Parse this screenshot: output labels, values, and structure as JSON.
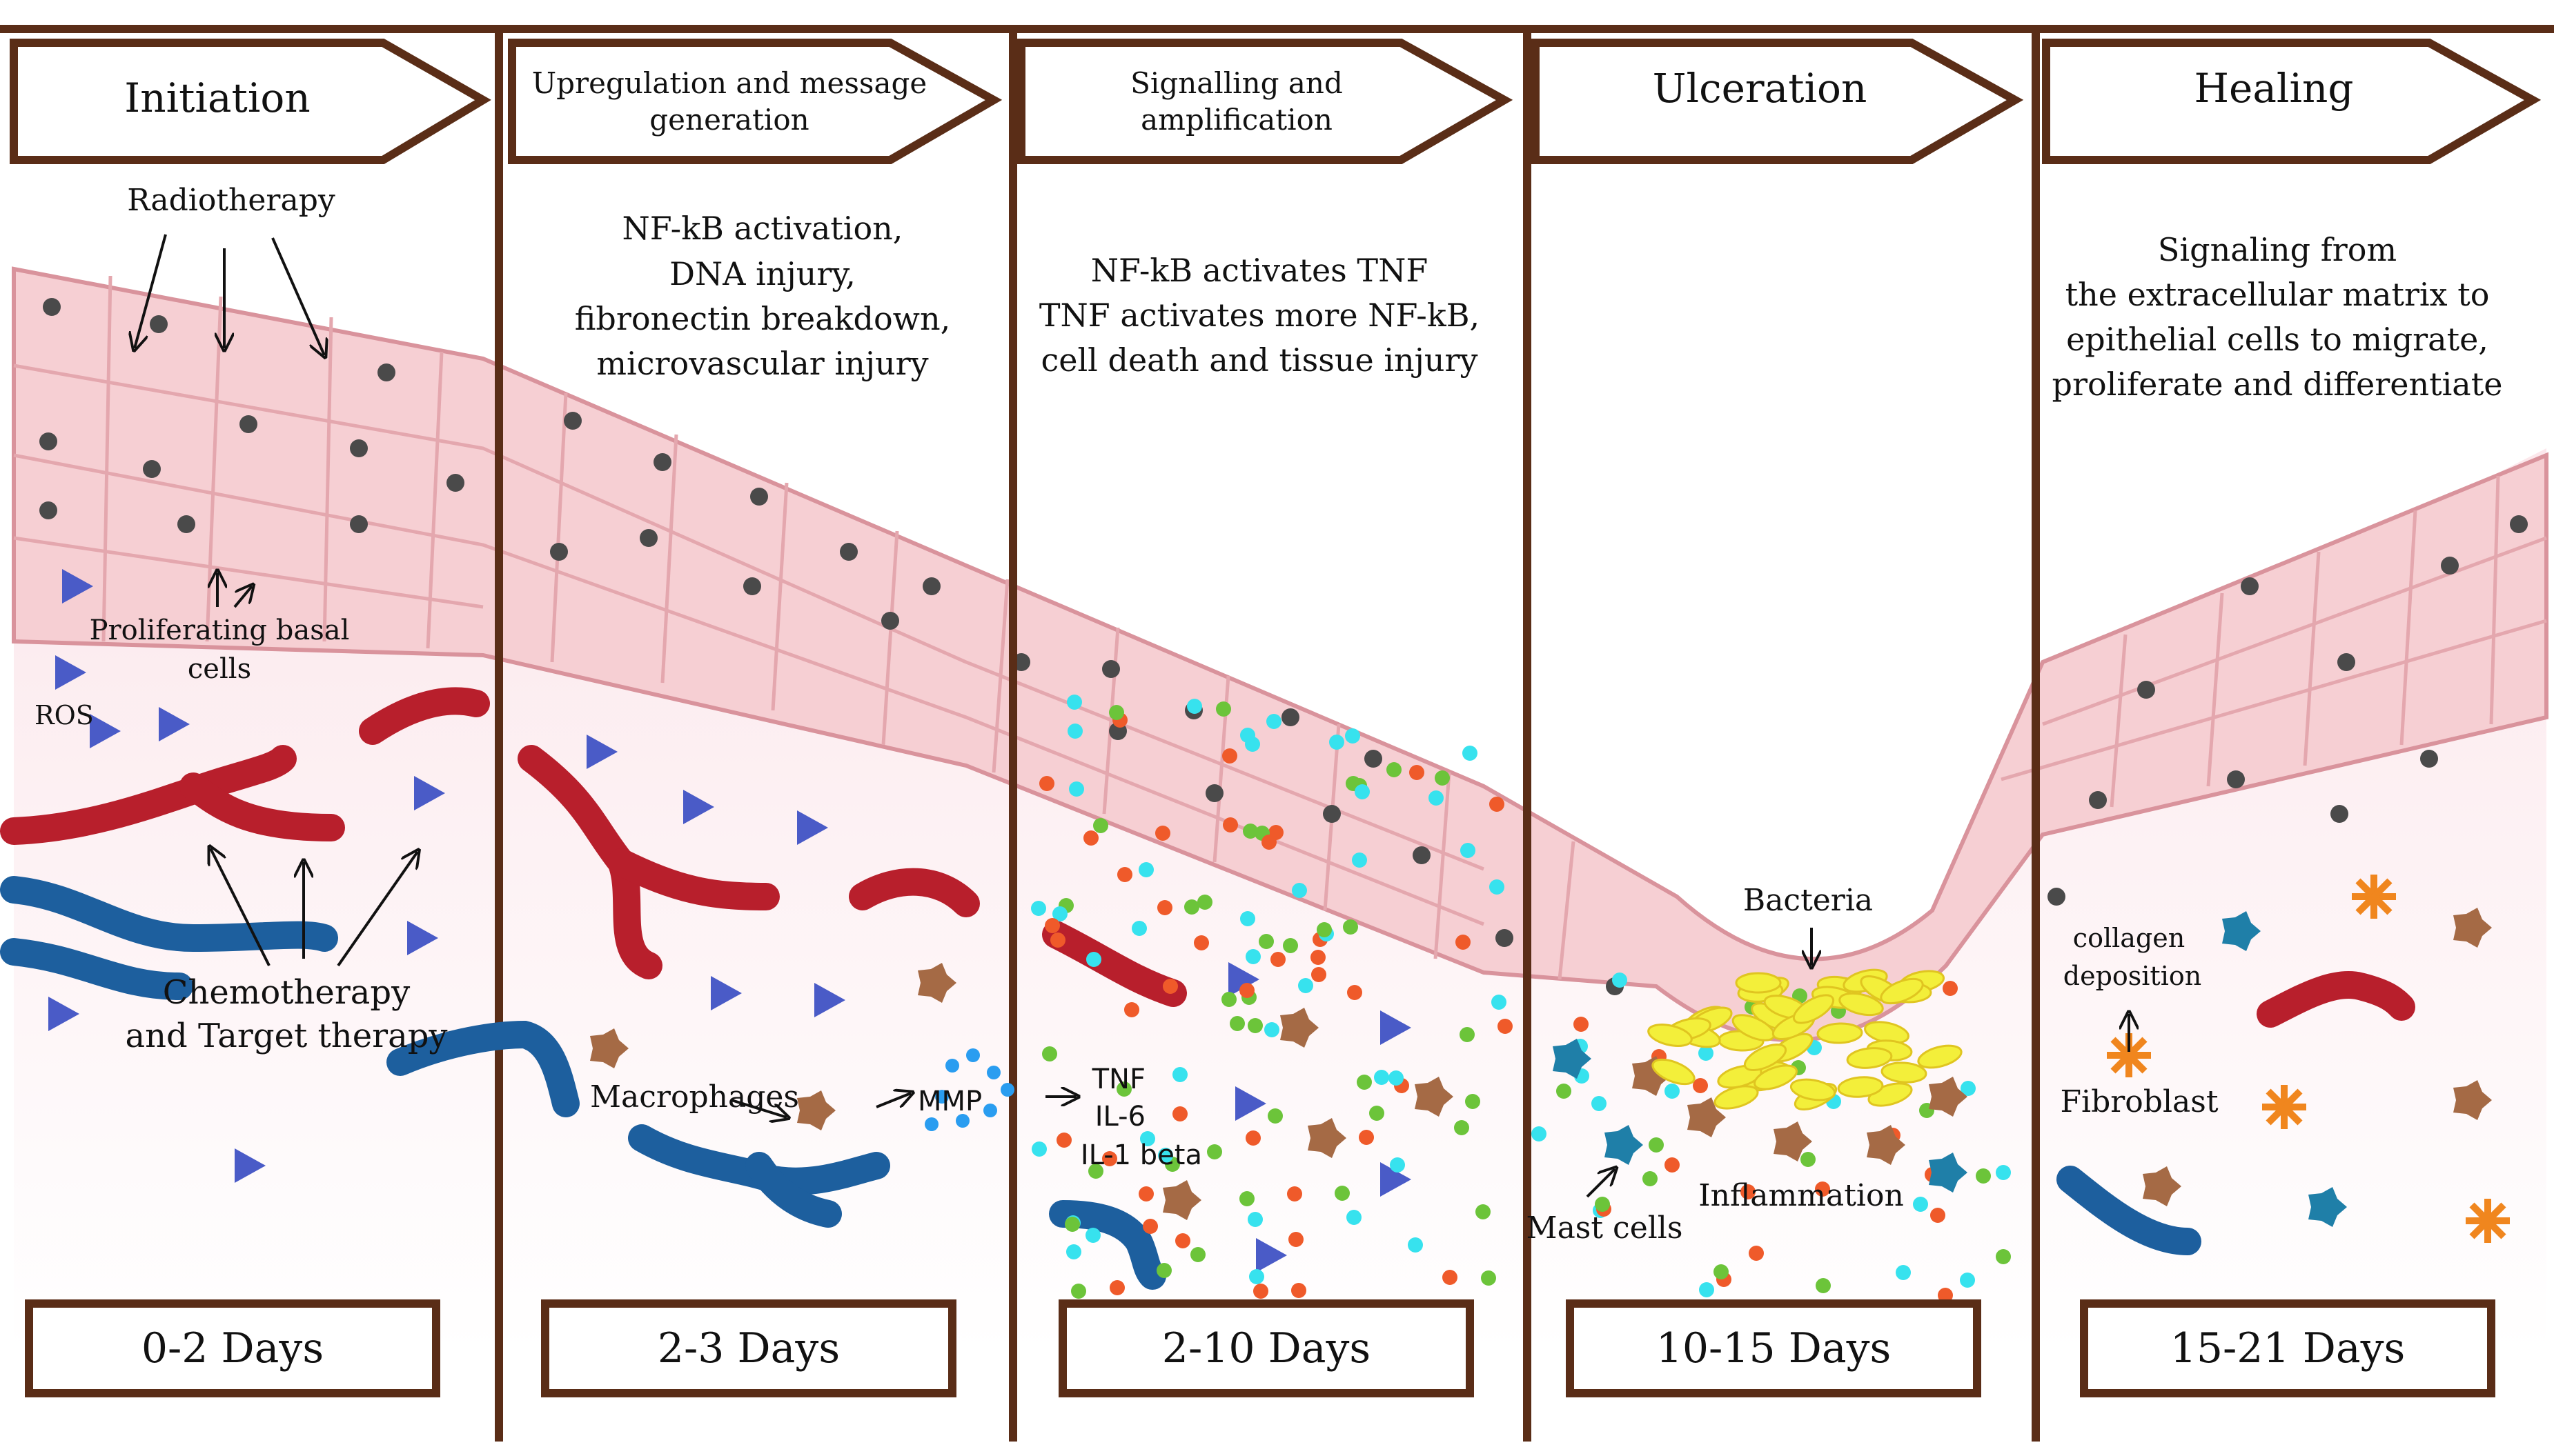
{
  "colors": {
    "divider": "#5a2d17",
    "cell_fill": "#f6cfd3",
    "cell_stroke": "#d9939c",
    "nucleus": "#4a4a4a",
    "tissue_bg": "#f9e6ea",
    "vessel_red": "#b81f2c",
    "vessel_blue": "#1d5f9e",
    "ros": "#4a5bc7",
    "macrophage": "#a56a45",
    "mast_cell": "#1f7fa8",
    "fibroblast": "#f0861e",
    "bacteria": "#f3ef3a",
    "tnf_dot": "#37e2ee",
    "il6_dot": "#ef5a2a",
    "il1_dot": "#6cc43a",
    "mmp_dot": "#2a9df0"
  },
  "stages": [
    {
      "header": [
        "Initiation"
      ],
      "description": [],
      "days": "0-2 Days"
    },
    {
      "header": [
        "Upregulation  and message",
        "generation"
      ],
      "description": [
        "NF-kB activation,",
        "DNA injury,",
        "fibronectin breakdown,",
        "microvascular injury"
      ],
      "days": "2-3 Days"
    },
    {
      "header": [
        "Signalling and",
        "amplification"
      ],
      "description": [
        "NF-kB activates TNF",
        "TNF activates more NF-kB,",
        "cell death and tissue injury"
      ],
      "days": "2-10 Days"
    },
    {
      "header": [
        "Ulceration"
      ],
      "description": [],
      "days": "10-15 Days"
    },
    {
      "header": [
        "Healing"
      ],
      "description": [
        "Signaling from",
        "the extracellular matrix to",
        "epithelial cells to migrate,",
        "proliferate and differentiate"
      ],
      "days": "15-21 Days"
    }
  ],
  "labels": {
    "radiotherapy": "Radiotherapy",
    "proliferating_basal": [
      "Proliferating basal",
      "cells"
    ],
    "ros": "ROS",
    "chemotherapy": [
      "Chemotherapy",
      "and Target therapy"
    ],
    "macrophages": "Macrophages",
    "mmp": "MMP",
    "tnf": "TNF",
    "il6": "IL-6",
    "il1beta": "IL-1 beta",
    "bacteria": "Bacteria",
    "mast_cells": "Mast cells",
    "inflammation": "Inflammation",
    "collagen": [
      "collagen",
      "deposition"
    ],
    "fibroblast": "Fibroblast"
  }
}
